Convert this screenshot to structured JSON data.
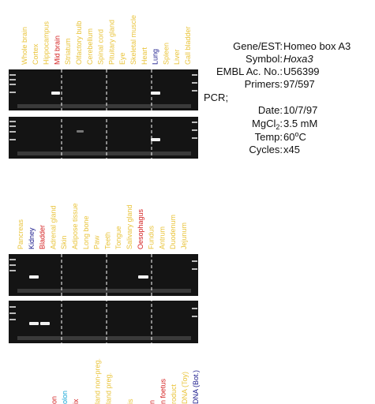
{
  "lane_groups": [
    {
      "labels": [
        {
          "text": "Whole brain",
          "color": "#e9c43c"
        },
        {
          "text": "Cortex",
          "color": "#e9c43c"
        },
        {
          "text": "Hippocampus",
          "color": "#e9c43c"
        },
        {
          "text": "Mid brain",
          "color": "#d42020"
        },
        {
          "text": "Striatum",
          "color": "#e9c43c"
        },
        {
          "text": "Olfactory bulb",
          "color": "#e9c43c"
        },
        {
          "text": "Cerebellum",
          "color": "#e9c43c"
        },
        {
          "text": "Spinal cord",
          "color": "#e9c43c"
        },
        {
          "text": "Pituitary gland",
          "color": "#e9c43c"
        },
        {
          "text": "Eye",
          "color": "#e9c43c"
        },
        {
          "text": "Skeletal muscle",
          "color": "#e9c43c"
        },
        {
          "text": "Heart",
          "color": "#e9c43c"
        },
        {
          "text": "Lung",
          "color": "#1a1a8c"
        },
        {
          "text": "Spleen",
          "color": "#e9c43c"
        },
        {
          "text": "Liver",
          "color": "#e9c43c"
        },
        {
          "text": "Gall bladder",
          "color": "#e9c43c"
        }
      ]
    },
    {
      "labels": [
        {
          "text": "Pancreas",
          "color": "#e9c43c"
        },
        {
          "text": "Kidney",
          "color": "#1a1a8c"
        },
        {
          "text": "Bladder",
          "color": "#d42020"
        },
        {
          "text": "Adrenal gland",
          "color": "#e9c43c"
        },
        {
          "text": "Skin",
          "color": "#e9c43c"
        },
        {
          "text": "Adipose tissue",
          "color": "#e9c43c"
        },
        {
          "text": "Long bone",
          "color": "#e9c43c"
        },
        {
          "text": "Paw",
          "color": "#e9c43c"
        },
        {
          "text": "Teeth",
          "color": "#e9c43c"
        },
        {
          "text": "Tongue",
          "color": "#e9c43c"
        },
        {
          "text": "Salivary gland",
          "color": "#e9c43c"
        },
        {
          "text": "Oesophagus",
          "color": "#d42020"
        },
        {
          "text": "Fundus",
          "color": "#e9c43c"
        },
        {
          "text": "Antrum",
          "color": "#e9c43c"
        },
        {
          "text": "Duodenum",
          "color": "#e9c43c"
        },
        {
          "text": "Jejunum",
          "color": "#e9c43c"
        }
      ]
    },
    {
      "labels": [
        {
          "text": "",
          "color": "#e9c43c"
        },
        {
          "text": "",
          "color": "#e9c43c"
        },
        {
          "text": "",
          "color": "#e9c43c"
        },
        {
          "text": "on",
          "color": "#d42020"
        },
        {
          "text": "olon",
          "color": "#18a8d8"
        },
        {
          "text": "ix",
          "color": "#d42020"
        },
        {
          "text": "",
          "color": "#e9c43c"
        },
        {
          "text": "land non-preg.",
          "color": "#e9c43c"
        },
        {
          "text": "land preg.",
          "color": "#e9c43c"
        },
        {
          "text": "",
          "color": "#e9c43c"
        },
        {
          "text": "is",
          "color": "#e9c43c"
        },
        {
          "text": "",
          "color": "#e9c43c"
        },
        {
          "text": "n",
          "color": "#d42020"
        },
        {
          "text": "n foetus",
          "color": "#d42020"
        },
        {
          "text": "roduct",
          "color": "#e9c43c"
        },
        {
          "text": "DNA (Toy)",
          "color": "#e9c43c"
        },
        {
          "text": "DNA (Bot.)",
          "color": "#1a1a8c"
        }
      ]
    }
  ],
  "info": {
    "gene_label": "Gene/EST:",
    "gene": "Homeo box A3",
    "symbol_label": "Symbol:",
    "symbol": "Hoxa3",
    "embl_label": "EMBL Ac. No.:",
    "embl": "U56399",
    "primers_label": "Primers:",
    "primers": "97/597",
    "pcr": "PCR;",
    "date_label": "Date:",
    "date": "10/7/97",
    "mgcl_label": "MgCl",
    "mgcl_sub": "2",
    "mgcl_colon": ":",
    "mgcl": "3.5 mM",
    "temp_label": "Temp:",
    "temp": "60",
    "temp_deg": "o",
    "temp_unit": "C",
    "cycles_label": "Cycles:",
    "cycles": "x45"
  }
}
